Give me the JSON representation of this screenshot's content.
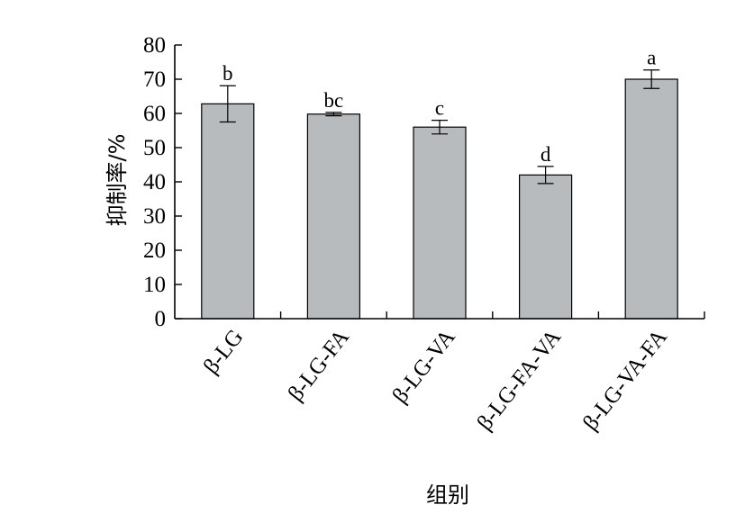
{
  "chart_data": {
    "type": "bar",
    "xlabel": "组别",
    "ylabel": "抑制率/%",
    "ylim": [
      0,
      80
    ],
    "yticks": [
      0,
      10,
      20,
      30,
      40,
      50,
      60,
      70,
      80
    ],
    "categories": [
      "β-LG",
      "β-LG-FA",
      "β-LG-VA",
      "β-LG-FA-VA",
      "β-LG-VA-FA"
    ],
    "values": [
      62.8,
      59.8,
      56.0,
      42.0,
      70.0
    ],
    "errors": [
      5.3,
      0.5,
      2.0,
      2.5,
      2.7
    ],
    "significance": [
      "b",
      "bc",
      "c",
      "d",
      "a"
    ],
    "bar_color": "#b8bbbd",
    "grid": false
  }
}
